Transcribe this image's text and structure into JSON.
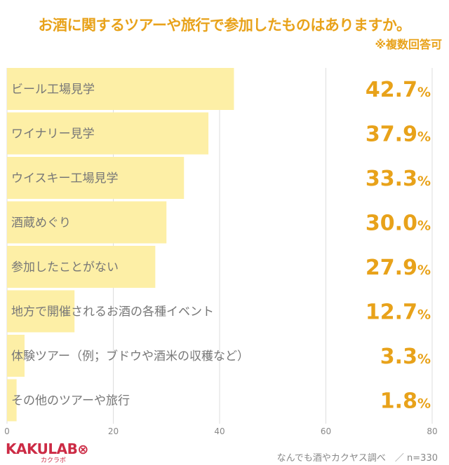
{
  "header": {
    "title": "お酒に関するツアーや旅行で参加したものはありますか。",
    "subtitle": "※複数回答可"
  },
  "footer": {
    "logo": "KAKULAB",
    "logo_sub": "カクラボ",
    "source": "なんでも酒やカクヤス調べ　／ n=330"
  },
  "colors": {
    "bar": "#fdefa6",
    "accent": "#e8a21a",
    "label": "#777777",
    "grid": "#dddddd",
    "logo": "#cc2b45"
  },
  "chart_data": {
    "type": "bar",
    "orientation": "horizontal",
    "categories": [
      "ビール工場見学",
      "ワイナリー見学",
      "ウイスキー工場見学",
      "酒蔵めぐり",
      "参加したことがない",
      "地方で開催されるお酒の各種イベント",
      "体験ツアー（例；ブドウや酒米の収穫など）",
      "その他のツアーや旅行"
    ],
    "values": [
      42.7,
      37.9,
      33.3,
      30.0,
      27.9,
      12.7,
      3.3,
      1.8
    ],
    "value_labels": [
      "42.7",
      "37.9",
      "33.3",
      "30.0",
      "27.9",
      "12.7",
      "3.3",
      "1.8"
    ],
    "value_unit": "%",
    "xlim": [
      0,
      80
    ],
    "xticks": [
      "0",
      "20",
      "40",
      "60",
      "80"
    ],
    "grid": true
  }
}
